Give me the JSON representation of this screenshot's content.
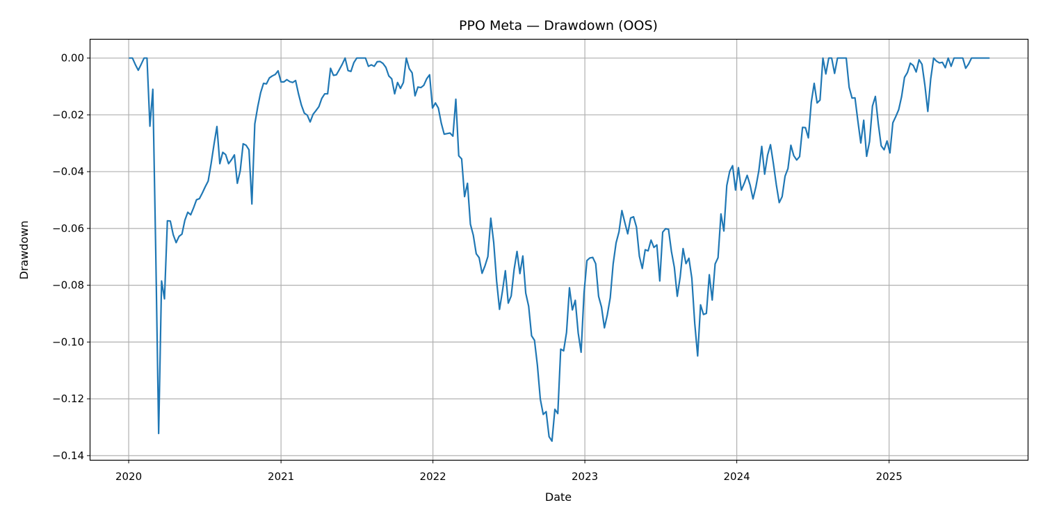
{
  "chart_data": {
    "type": "line",
    "title": "PPO Meta — Drawdown (OOS)",
    "xlabel": "Date",
    "ylabel": "Drawdown",
    "xlim": [
      "2019-10-01",
      "2025-11-30"
    ],
    "ylim": [
      -0.1415,
      0.0065
    ],
    "x_ticks": [
      "2020",
      "2021",
      "2022",
      "2023",
      "2024",
      "2025"
    ],
    "y_ticks": [
      "0.00",
      "−0.02",
      "−0.04",
      "−0.06",
      "−0.08",
      "−0.10",
      "−0.12",
      "−0.14"
    ],
    "grid": true,
    "line_color": "#1f77b4",
    "series": [
      {
        "x": [
          "2020-01-03",
          "2020-01-10",
          "2020-01-17",
          "2020-01-24",
          "2020-01-31",
          "2020-02-07",
          "2020-02-14",
          "2020-02-21",
          "2020-02-28",
          "2020-03-06",
          "2020-03-13",
          "2020-03-20",
          "2020-03-27",
          "2020-04-03",
          "2020-04-10",
          "2020-04-17",
          "2020-04-24",
          "2020-05-01",
          "2020-05-08",
          "2020-05-15",
          "2020-05-22",
          "2020-05-29",
          "2020-06-05",
          "2020-06-12",
          "2020-06-19",
          "2020-06-26",
          "2020-07-03",
          "2020-07-10",
          "2020-07-17",
          "2020-07-24",
          "2020-07-31",
          "2020-08-07",
          "2020-08-14",
          "2020-08-21",
          "2020-08-28",
          "2020-09-04",
          "2020-09-11",
          "2020-09-18",
          "2020-09-25",
          "2020-10-02",
          "2020-10-09",
          "2020-10-16",
          "2020-10-23",
          "2020-10-30",
          "2020-11-06",
          "2020-11-13",
          "2020-11-20",
          "2020-11-27",
          "2020-12-04",
          "2020-12-11",
          "2020-12-18",
          "2020-12-25",
          "2021-01-01",
          "2021-01-08",
          "2021-01-15",
          "2021-01-22",
          "2021-01-29",
          "2021-02-05",
          "2021-02-12",
          "2021-02-19",
          "2021-02-26",
          "2021-03-05",
          "2021-03-12",
          "2021-03-19",
          "2021-03-26",
          "2021-04-02",
          "2021-04-09",
          "2021-04-16",
          "2021-04-23",
          "2021-04-30",
          "2021-05-07",
          "2021-05-14",
          "2021-05-21",
          "2021-05-28",
          "2021-06-04",
          "2021-06-11",
          "2021-06-18",
          "2021-06-25",
          "2021-07-02",
          "2021-07-09",
          "2021-07-16",
          "2021-07-23",
          "2021-07-30",
          "2021-08-06",
          "2021-08-13",
          "2021-08-20",
          "2021-08-27",
          "2021-09-03",
          "2021-09-10",
          "2021-09-17",
          "2021-09-24",
          "2021-10-01",
          "2021-10-08",
          "2021-10-15",
          "2021-10-22",
          "2021-10-29",
          "2021-11-05",
          "2021-11-12",
          "2021-11-19",
          "2021-11-26",
          "2021-12-03",
          "2021-12-10",
          "2021-12-17",
          "2021-12-24",
          "2021-12-31",
          "2022-01-07",
          "2022-01-14",
          "2022-01-21",
          "2022-01-28",
          "2022-02-04",
          "2022-02-11",
          "2022-02-18",
          "2022-02-25",
          "2022-03-04",
          "2022-03-11",
          "2022-03-18",
          "2022-03-25",
          "2022-04-01",
          "2022-04-08",
          "2022-04-15",
          "2022-04-22",
          "2022-04-29",
          "2022-05-06",
          "2022-05-13",
          "2022-05-20",
          "2022-05-27",
          "2022-06-03",
          "2022-06-10",
          "2022-06-17",
          "2022-06-24",
          "2022-07-01",
          "2022-07-08",
          "2022-07-15",
          "2022-07-22",
          "2022-07-29",
          "2022-08-05",
          "2022-08-12",
          "2022-08-19",
          "2022-08-26",
          "2022-09-02",
          "2022-09-09",
          "2022-09-16",
          "2022-09-23",
          "2022-09-30",
          "2022-10-07",
          "2022-10-14",
          "2022-10-21",
          "2022-10-28",
          "2022-11-04",
          "2022-11-11",
          "2022-11-18",
          "2022-11-25",
          "2022-12-02",
          "2022-12-09",
          "2022-12-16",
          "2022-12-23",
          "2022-12-30",
          "2023-01-06",
          "2023-01-13",
          "2023-01-20",
          "2023-01-27",
          "2023-02-03",
          "2023-02-10",
          "2023-02-17",
          "2023-02-24",
          "2023-03-03",
          "2023-03-10",
          "2023-03-17",
          "2023-03-24",
          "2023-03-31",
          "2023-04-07",
          "2023-04-14",
          "2023-04-21",
          "2023-04-28",
          "2023-05-05",
          "2023-05-12",
          "2023-05-19",
          "2023-05-26",
          "2023-06-02",
          "2023-06-09",
          "2023-06-16",
          "2023-06-23",
          "2023-06-30",
          "2023-07-07",
          "2023-07-14",
          "2023-07-21",
          "2023-07-28",
          "2023-08-04",
          "2023-08-11",
          "2023-08-18",
          "2023-08-25",
          "2023-09-01",
          "2023-09-08",
          "2023-09-15",
          "2023-09-22",
          "2023-09-29",
          "2023-10-06",
          "2023-10-13",
          "2023-10-20",
          "2023-10-27",
          "2023-11-03",
          "2023-11-10",
          "2023-11-17",
          "2023-11-24",
          "2023-12-01",
          "2023-12-08",
          "2023-12-15",
          "2023-12-22",
          "2023-12-29",
          "2024-01-05",
          "2024-01-12",
          "2024-01-19",
          "2024-01-26",
          "2024-02-02",
          "2024-02-09",
          "2024-02-16",
          "2024-02-23",
          "2024-03-01",
          "2024-03-08",
          "2024-03-15",
          "2024-03-22",
          "2024-03-29",
          "2024-04-05",
          "2024-04-12",
          "2024-04-19",
          "2024-04-26",
          "2024-05-03",
          "2024-05-10",
          "2024-05-17",
          "2024-05-24",
          "2024-05-31",
          "2024-06-07",
          "2024-06-14",
          "2024-06-21",
          "2024-06-28",
          "2024-07-05",
          "2024-07-12",
          "2024-07-19",
          "2024-07-26",
          "2024-08-02",
          "2024-08-09",
          "2024-08-16",
          "2024-08-23",
          "2024-08-30",
          "2024-09-06",
          "2024-09-13",
          "2024-09-20",
          "2024-09-27",
          "2024-10-04",
          "2024-10-11",
          "2024-10-18",
          "2024-10-25",
          "2024-11-01",
          "2024-11-08",
          "2024-11-15",
          "2024-11-22",
          "2024-11-29",
          "2024-12-06",
          "2024-12-13",
          "2024-12-20",
          "2024-12-27",
          "2025-01-03",
          "2025-01-10",
          "2025-01-17",
          "2025-01-24",
          "2025-01-31",
          "2025-02-07",
          "2025-02-14",
          "2025-02-21",
          "2025-02-28",
          "2025-03-07",
          "2025-03-14",
          "2025-03-21",
          "2025-03-28",
          "2025-04-04",
          "2025-04-11",
          "2025-04-18",
          "2025-04-25",
          "2025-05-02",
          "2025-05-09",
          "2025-05-16",
          "2025-05-23",
          "2025-05-30",
          "2025-06-06",
          "2025-06-13",
          "2025-06-20",
          "2025-06-27",
          "2025-07-04",
          "2025-07-11",
          "2025-07-18",
          "2025-07-25",
          "2025-08-01",
          "2025-08-08",
          "2025-08-15",
          "2025-08-22",
          "2025-08-29"
        ],
        "y": [
          0,
          0,
          -0.0023,
          -0.0043,
          -0.0022,
          0,
          0,
          -0.024,
          -0.011,
          -0.068,
          -0.1322,
          -0.0785,
          -0.0848,
          -0.0573,
          -0.0574,
          -0.0622,
          -0.065,
          -0.0628,
          -0.062,
          -0.0571,
          -0.0543,
          -0.0552,
          -0.0527,
          -0.0499,
          -0.0495,
          -0.0475,
          -0.0453,
          -0.0433,
          -0.0372,
          -0.0304,
          -0.0241,
          -0.0372,
          -0.0332,
          -0.034,
          -0.0372,
          -0.0358,
          -0.0341,
          -0.0441,
          -0.0397,
          -0.0302,
          -0.0307,
          -0.0323,
          -0.0514,
          -0.0232,
          -0.0172,
          -0.0122,
          -0.0089,
          -0.0091,
          -0.007,
          -0.0063,
          -0.0058,
          -0.0045,
          -0.0084,
          -0.0084,
          -0.0076,
          -0.0083,
          -0.0086,
          -0.0079,
          -0.0126,
          -0.0166,
          -0.0194,
          -0.0201,
          -0.0225,
          -0.0198,
          -0.0185,
          -0.0171,
          -0.0142,
          -0.0126,
          -0.0126,
          -0.0036,
          -0.0061,
          -0.0059,
          -0.0041,
          -0.0022,
          0,
          -0.0044,
          -0.0047,
          -0.0016,
          0,
          0,
          0,
          0,
          -0.0029,
          -0.0024,
          -0.0029,
          -0.0013,
          -0.0012,
          -0.0019,
          -0.0033,
          -0.0063,
          -0.0073,
          -0.0126,
          -0.0086,
          -0.0107,
          -0.0086,
          0,
          -0.0037,
          -0.0052,
          -0.0133,
          -0.0102,
          -0.0104,
          -0.0096,
          -0.0073,
          -0.0059,
          -0.0176,
          -0.0158,
          -0.0176,
          -0.0229,
          -0.0268,
          -0.0266,
          -0.0264,
          -0.0275,
          -0.0145,
          -0.0344,
          -0.0355,
          -0.0488,
          -0.0441,
          -0.0585,
          -0.0624,
          -0.0689,
          -0.0703,
          -0.0758,
          -0.0732,
          -0.0699,
          -0.0564,
          -0.0649,
          -0.0785,
          -0.0885,
          -0.0821,
          -0.0749,
          -0.0863,
          -0.0838,
          -0.0745,
          -0.0681,
          -0.0759,
          -0.0697,
          -0.0828,
          -0.0874,
          -0.0978,
          -0.0994,
          -0.1082,
          -0.1201,
          -0.1255,
          -0.1245,
          -0.1333,
          -0.1349,
          -0.1237,
          -0.1252,
          -0.1025,
          -0.1031,
          -0.0966,
          -0.0809,
          -0.0887,
          -0.0853,
          -0.0968,
          -0.1036,
          -0.0828,
          -0.0713,
          -0.0704,
          -0.0702,
          -0.0724,
          -0.0839,
          -0.0877,
          -0.095,
          -0.0904,
          -0.0844,
          -0.0725,
          -0.0651,
          -0.0612,
          -0.0537,
          -0.0579,
          -0.0619,
          -0.0563,
          -0.0559,
          -0.0595,
          -0.0698,
          -0.0741,
          -0.0675,
          -0.0679,
          -0.0641,
          -0.0667,
          -0.0658,
          -0.0785,
          -0.0613,
          -0.0601,
          -0.0603,
          -0.0681,
          -0.0737,
          -0.0839,
          -0.0771,
          -0.0671,
          -0.0724,
          -0.0705,
          -0.0775,
          -0.0934,
          -0.1049,
          -0.0869,
          -0.0903,
          -0.0899,
          -0.0763,
          -0.0852,
          -0.0725,
          -0.0703,
          -0.0549,
          -0.0609,
          -0.0449,
          -0.0399,
          -0.0379,
          -0.0465,
          -0.0386,
          -0.0465,
          -0.0441,
          -0.0413,
          -0.0447,
          -0.0496,
          -0.0453,
          -0.0397,
          -0.0311,
          -0.0409,
          -0.0342,
          -0.0305,
          -0.0372,
          -0.0446,
          -0.0509,
          -0.0488,
          -0.0416,
          -0.0389,
          -0.0307,
          -0.0344,
          -0.0359,
          -0.0347,
          -0.0244,
          -0.0245,
          -0.0281,
          -0.0156,
          -0.0089,
          -0.0158,
          -0.0148,
          0,
          -0.0056,
          0,
          0,
          -0.0054,
          0,
          0,
          0,
          0,
          -0.0103,
          -0.0141,
          -0.014,
          -0.0222,
          -0.0299,
          -0.0219,
          -0.0346,
          -0.0294,
          -0.0169,
          -0.0135,
          -0.0231,
          -0.0309,
          -0.0323,
          -0.0292,
          -0.0334,
          -0.0228,
          -0.0206,
          -0.0182,
          -0.0136,
          -0.0068,
          -0.0051,
          -0.0018,
          -0.0026,
          -0.0049,
          -0.0006,
          -0.0022,
          -0.0096,
          -0.0188,
          -0.0073,
          0,
          -0.0011,
          -0.0017,
          -0.0015,
          -0.0034,
          0,
          -0.0029,
          0,
          0,
          0,
          0,
          -0.0036,
          -0.0021,
          0,
          0,
          0,
          0,
          0,
          0,
          0
        ]
      }
    ]
  }
}
